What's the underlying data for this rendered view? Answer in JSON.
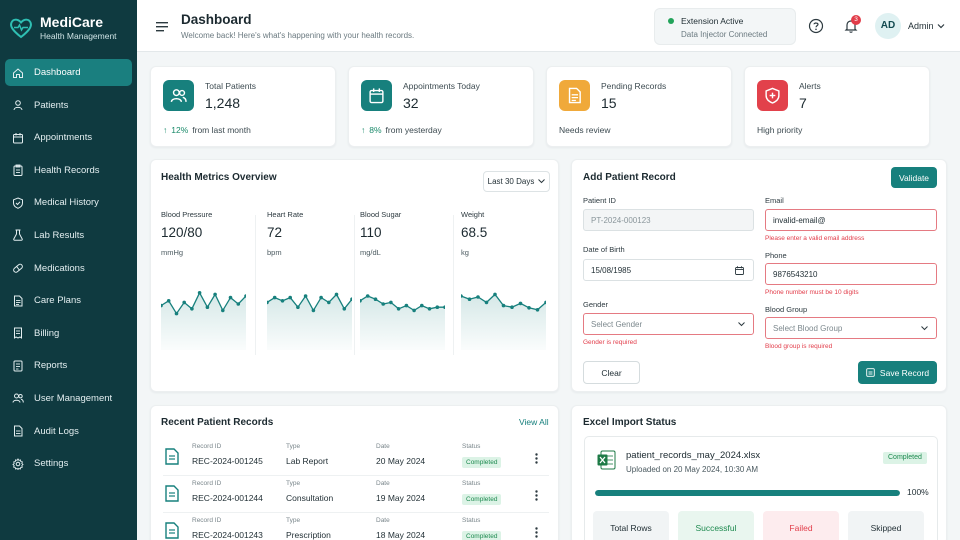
{
  "brand": {
    "name": "MediCare",
    "subtitle": "Health Management"
  },
  "nav": [
    {
      "label": "Dashboard",
      "icon": "home-icon",
      "active": true
    },
    {
      "label": "Patients",
      "icon": "user-icon"
    },
    {
      "label": "Appointments",
      "icon": "calendar-icon"
    },
    {
      "label": "Health Records",
      "icon": "clipboard-icon"
    },
    {
      "label": "Medical History",
      "icon": "shield-icon"
    },
    {
      "label": "Lab Results",
      "icon": "flask-icon"
    },
    {
      "label": "Medications",
      "icon": "pill-icon"
    },
    {
      "label": "Care Plans",
      "icon": "document-icon"
    },
    {
      "label": "Billing",
      "icon": "receipt-icon"
    },
    {
      "label": "Reports",
      "icon": "report-icon"
    },
    {
      "label": "User Management",
      "icon": "users-icon"
    },
    {
      "label": "Audit Logs",
      "icon": "log-icon"
    },
    {
      "label": "Settings",
      "icon": "gear-icon"
    }
  ],
  "header": {
    "title": "Dashboard",
    "subtitle": "Welcome back! Here's what's happening with your health records.",
    "extension_status": "Extension Active",
    "extension_sub": "Data Injector Connected",
    "notification_count": "3",
    "avatar_initials": "AD",
    "user_label": "Admin"
  },
  "stats": [
    {
      "label": "Total Patients",
      "value": "1,248",
      "trend": "12%",
      "trend_text": "from last month",
      "color": "#17807d",
      "icon": "users-icon"
    },
    {
      "label": "Appointments Today",
      "value": "32",
      "trend": "8%",
      "trend_text": "from yesterday",
      "color": "#17807d",
      "icon": "calendar-icon"
    },
    {
      "label": "Pending Records",
      "value": "15",
      "trend": "",
      "trend_text": "Needs review",
      "color": "#f0a93a",
      "icon": "document-icon"
    },
    {
      "label": "Alerts",
      "value": "7",
      "trend": "",
      "trend_text": "High priority",
      "color": "#e2414b",
      "icon": "shield-alert-icon"
    }
  ],
  "metrics": {
    "title": "Health Metrics Overview",
    "range": "Last 30 Days",
    "items": [
      {
        "label": "Blood Pressure",
        "value": "120/80",
        "unit": "mmHg",
        "trend": [
          0.45,
          0.6,
          0.2,
          0.55,
          0.35,
          0.85,
          0.4,
          0.8,
          0.3,
          0.7,
          0.5,
          0.75
        ]
      },
      {
        "label": "Heart Rate",
        "value": "72",
        "unit": "bpm",
        "trend": [
          0.55,
          0.7,
          0.6,
          0.7,
          0.4,
          0.75,
          0.3,
          0.7,
          0.55,
          0.8,
          0.35,
          0.65
        ]
      },
      {
        "label": "Blood Sugar",
        "value": "110",
        "unit": "mg/dL",
        "trend": [
          0.6,
          0.75,
          0.65,
          0.5,
          0.55,
          0.35,
          0.45,
          0.3,
          0.45,
          0.35,
          0.4,
          0.4
        ]
      },
      {
        "label": "Weight",
        "value": "68.5",
        "unit": "kg",
        "trend": [
          0.75,
          0.65,
          0.72,
          0.55,
          0.8,
          0.45,
          0.4,
          0.52,
          0.38,
          0.32,
          0.55
        ]
      }
    ]
  },
  "form": {
    "title": "Add Patient Record",
    "validate_label": "Validate",
    "patient_id_label": "Patient ID",
    "patient_id_value": "PT-2024-000123",
    "email_label": "Email",
    "email_value": "invalid-email@",
    "email_error": "Please enter a valid email address",
    "dob_label": "Date of Birth",
    "dob_value": "15/08/1985",
    "phone_label": "Phone",
    "phone_value": "9876543210",
    "phone_error": "Phone number must be 10 digits",
    "gender_label": "Gender",
    "gender_placeholder": "Select Gender",
    "gender_error": "Gender is required",
    "blood_label": "Blood Group",
    "blood_placeholder": "Select Blood Group",
    "blood_error": "Blood group is required",
    "clear_label": "Clear",
    "save_label": "Save Record"
  },
  "records": {
    "title": "Recent Patient Records",
    "view_all": "View All",
    "keys": {
      "id": "Record ID",
      "type": "Type",
      "date": "Date",
      "status": "Status"
    },
    "rows": [
      {
        "id": "REC-2024-001245",
        "type": "Lab Report",
        "date": "20 May 2024",
        "status": "Completed"
      },
      {
        "id": "REC-2024-001244",
        "type": "Consultation",
        "date": "19 May 2024",
        "status": "Completed"
      },
      {
        "id": "REC-2024-001243",
        "type": "Prescription",
        "date": "18 May 2024",
        "status": "Completed"
      }
    ]
  },
  "import": {
    "title": "Excel Import Status",
    "file_name": "patient_records_may_2024.xlsx",
    "uploaded": "Uploaded on 20 May 2024, 10:30 AM",
    "status": "Completed",
    "progress": 100,
    "progress_label": "100%",
    "tiles": [
      {
        "label": "Total Rows"
      },
      {
        "label": "Successful"
      },
      {
        "label": "Failed"
      },
      {
        "label": "Skipped"
      }
    ]
  }
}
